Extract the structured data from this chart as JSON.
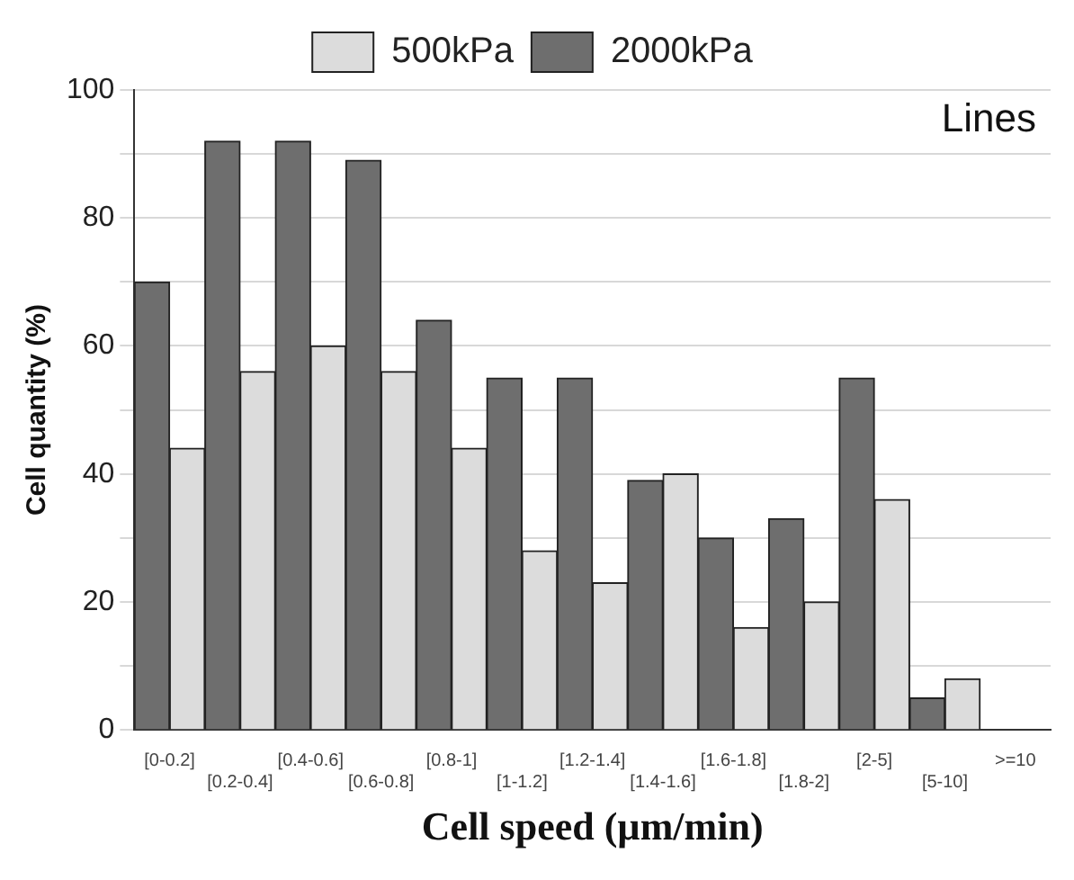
{
  "chart_data": {
    "type": "bar",
    "xlabel": "Cell speed (µm/min)",
    "ylabel": "Cell quantity (%)",
    "annotations": [
      "Lines"
    ],
    "categories": [
      "[0-0.2]",
      "[0.2-0.4]",
      "[0.4-0.6]",
      "[0.6-0.8]",
      "[0.8-1]",
      "[1-1.2]",
      "[1.2-1.4]",
      "[1.4-1.6]",
      "[1.6-1.8]",
      "[1.8-2]",
      "[2-5]",
      "[5-10]",
      ">=10"
    ],
    "series": [
      {
        "name": "2000kPa",
        "color": "#6e6e6e",
        "values": [
          70,
          92,
          92,
          89,
          64,
          55,
          55,
          39,
          30,
          33,
          55,
          5,
          null
        ]
      },
      {
        "name": "500kPa",
        "color": "#dcdcdc",
        "values": [
          44,
          56,
          60,
          56,
          44,
          28,
          23,
          40,
          16,
          20,
          36,
          8,
          null
        ]
      }
    ],
    "ylim": [
      0,
      100
    ],
    "yticks": [
      0,
      {
        "value": 10,
        "label": null
      },
      20,
      {
        "value": 30,
        "label": null
      },
      40,
      {
        "value": 50,
        "label": null
      },
      60,
      {
        "value": 70,
        "label": null
      },
      80,
      {
        "value": 90,
        "label": null
      },
      100
    ],
    "grid": "y",
    "legend": "top"
  }
}
